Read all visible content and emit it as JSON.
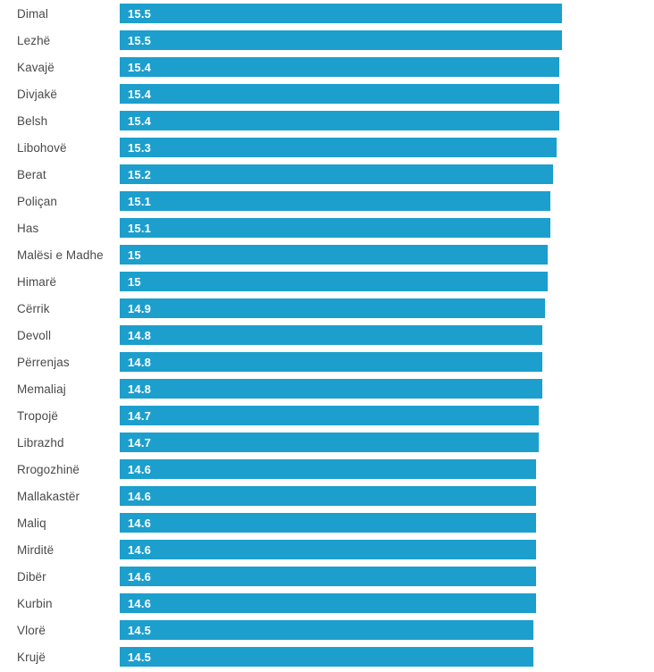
{
  "chart": {
    "bar_color": "#1c9fcd",
    "category_label_color": "#4a4a4a",
    "value_label_color": "#ffffff",
    "background_color": "#ffffff"
  },
  "chart_data": {
    "type": "bar",
    "orientation": "horizontal",
    "title": "",
    "xlabel": "",
    "ylabel": "",
    "legend": null,
    "grid": false,
    "value_axis_visible": false,
    "xlim": [
      0,
      15.5
    ],
    "categories": [
      "Dimal",
      "Lezhë",
      "Kavajë",
      "Divjakë",
      "Belsh",
      "Libohovë",
      "Berat",
      "Poliçan",
      "Has",
      "Malësi e Madhe",
      "Himarë",
      "Cërrik",
      "Devoll",
      "Përrenjas",
      "Memaliaj",
      "Tropojë",
      "Librazhd",
      "Rrogozhinë",
      "Mallakastër",
      "Maliq",
      "Mirditë",
      "Dibër",
      "Kurbin",
      "Vlorë",
      "Krujë"
    ],
    "values": [
      15.5,
      15.5,
      15.4,
      15.4,
      15.4,
      15.3,
      15.2,
      15.1,
      15.1,
      15,
      15,
      14.9,
      14.8,
      14.8,
      14.8,
      14.7,
      14.7,
      14.6,
      14.6,
      14.6,
      14.6,
      14.6,
      14.6,
      14.5,
      14.5
    ],
    "value_labels": [
      "15.5",
      "15.5",
      "15.4",
      "15.4",
      "15.4",
      "15.3",
      "15.2",
      "15.1",
      "15.1",
      "15",
      "15",
      "14.9",
      "14.8",
      "14.8",
      "14.8",
      "14.7",
      "14.7",
      "14.6",
      "14.6",
      "14.6",
      "14.6",
      "14.6",
      "14.6",
      "14.5",
      "14.5"
    ]
  }
}
